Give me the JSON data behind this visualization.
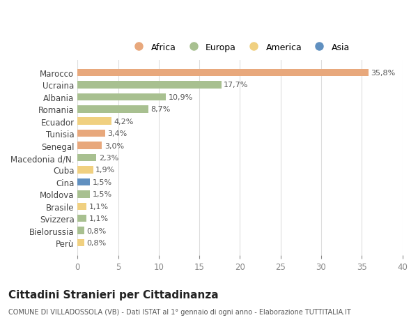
{
  "countries": [
    "Marocco",
    "Ucraina",
    "Albania",
    "Romania",
    "Ecuador",
    "Tunisia",
    "Senegal",
    "Macedonia d/N.",
    "Cuba",
    "Cina",
    "Moldova",
    "Brasile",
    "Svizzera",
    "Bielorussia",
    "Perù"
  ],
  "values": [
    35.8,
    17.7,
    10.9,
    8.7,
    4.2,
    3.4,
    3.0,
    2.3,
    1.9,
    1.5,
    1.5,
    1.1,
    1.1,
    0.8,
    0.8
  ],
  "labels": [
    "35,8%",
    "17,7%",
    "10,9%",
    "8,7%",
    "4,2%",
    "3,4%",
    "3,0%",
    "2,3%",
    "1,9%",
    "1,5%",
    "1,5%",
    "1,1%",
    "1,1%",
    "0,8%",
    "0,8%"
  ],
  "continents": [
    "Africa",
    "Europa",
    "Europa",
    "Europa",
    "America",
    "Africa",
    "Africa",
    "Europa",
    "America",
    "Asia",
    "Europa",
    "America",
    "Europa",
    "Europa",
    "America"
  ],
  "colors": {
    "Africa": "#E8A87C",
    "Europa": "#A8C090",
    "America": "#F0D080",
    "Asia": "#6090C0"
  },
  "xlim": [
    0,
    40
  ],
  "xticks": [
    0,
    5,
    10,
    15,
    20,
    25,
    30,
    35,
    40
  ],
  "title": "Cittadini Stranieri per Cittadinanza",
  "subtitle": "COMUNE DI VILLADOSSOLA (VB) - Dati ISTAT al 1° gennaio di ogni anno - Elaborazione TUTTITALIA.IT",
  "bg_color": "#FFFFFF",
  "grid_color": "#DDDDDD",
  "legend_order": [
    "Africa",
    "Europa",
    "America",
    "Asia"
  ]
}
